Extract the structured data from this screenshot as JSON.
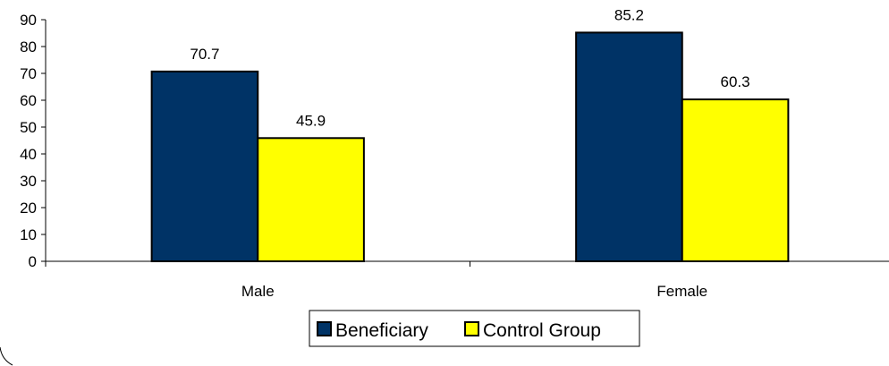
{
  "chart_data": {
    "type": "bar",
    "categories": [
      "Male",
      "Female"
    ],
    "series": [
      {
        "name": "Beneficiary",
        "values": [
          70.7,
          85.2
        ],
        "color": "#003366"
      },
      {
        "name": "Control Group",
        "values": [
          45.9,
          60.3
        ],
        "color": "#FFFF00"
      }
    ],
    "data_labels": [
      [
        "70.7",
        "85.2"
      ],
      [
        "45.9",
        "60.3"
      ]
    ],
    "ylim": [
      0,
      90
    ],
    "yticks": [
      "0",
      "10",
      "20",
      "30",
      "40",
      "50",
      "60",
      "70",
      "80",
      "90"
    ],
    "grid": false,
    "legend": "bottom"
  }
}
